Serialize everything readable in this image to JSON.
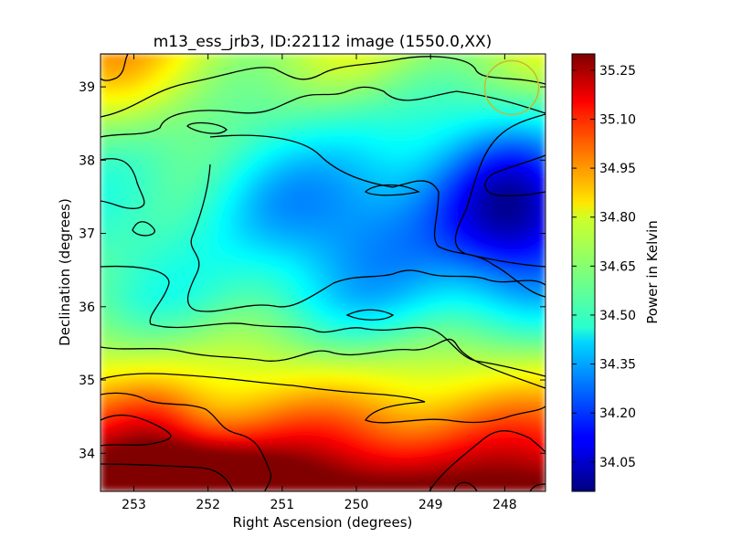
{
  "chart_data": {
    "type": "heatmap",
    "title": "m13_ess_jrb3, ID:22112 image (1550.0,XX)",
    "xlabel": "Right Ascension (degrees)",
    "ylabel": "Declination (degrees)",
    "x_axis": {
      "ticks": [
        253,
        252,
        251,
        250,
        249,
        248
      ],
      "range": [
        253.45,
        247.45
      ],
      "direction": "decreasing"
    },
    "y_axis": {
      "ticks": [
        34,
        35,
        36,
        37,
        38,
        39
      ],
      "range": [
        33.48,
        39.45
      ]
    },
    "colorbar": {
      "label": "Power in Kelvin",
      "ticks": [
        34.05,
        34.2,
        34.35,
        34.5,
        34.65,
        34.8,
        34.95,
        35.1,
        35.25
      ],
      "range": [
        33.96,
        35.3
      ],
      "colormap": "jet"
    },
    "field_summary": {
      "max_region": "bottom-left (RA ~253, Dec ~33.6), ~35.28 K",
      "min_region": "right (RA ~247.7, Dec ~37-38), ~33.97 K",
      "top_left_corner": "~34.8 K",
      "center": "~34.35 K"
    },
    "grid": false,
    "annotations": [
      {
        "type": "circle",
        "ra": 247.78,
        "dec": 39.0,
        "radius_deg": 0.37,
        "color": "#c8b832"
      }
    ]
  }
}
